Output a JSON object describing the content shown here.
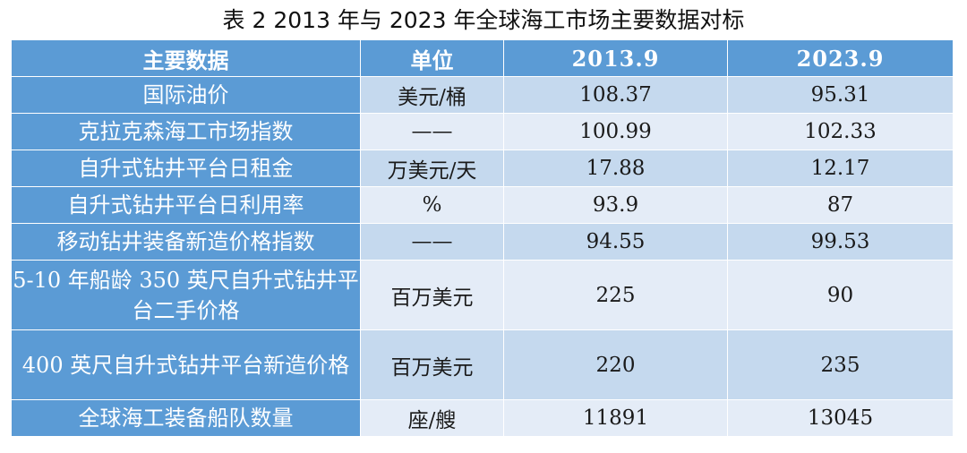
{
  "caption": "表 2 2013 年与 2023 年全球海工市场主要数据对标",
  "header": [
    "主要数据",
    "单位",
    "2013.9",
    "2023.9"
  ],
  "rows": [
    [
      "国际油价",
      "美元/桶",
      "108.37",
      "95.31"
    ],
    [
      "克拉克森海工市场指数",
      "——",
      "100.99",
      "102.33"
    ],
    [
      "自升式钻井平台日租金",
      "万美元/天",
      "17.88",
      "12.17"
    ],
    [
      "自升式钻井平台日利用率",
      "%",
      "93.9",
      "87"
    ],
    [
      "移动钻井装备新造价格指数",
      "——",
      "94.55",
      "99.53"
    ],
    [
      "5-10 年船龄 350 英尺自升式钻井平台二手价格",
      "百万美元",
      "225",
      "90"
    ],
    [
      "400 英尺自升式钻井平台新造价格",
      "百万美元",
      "220",
      "235"
    ],
    [
      "全球海工装备船队数量",
      "座/艘",
      "11891",
      "13045"
    ]
  ]
}
